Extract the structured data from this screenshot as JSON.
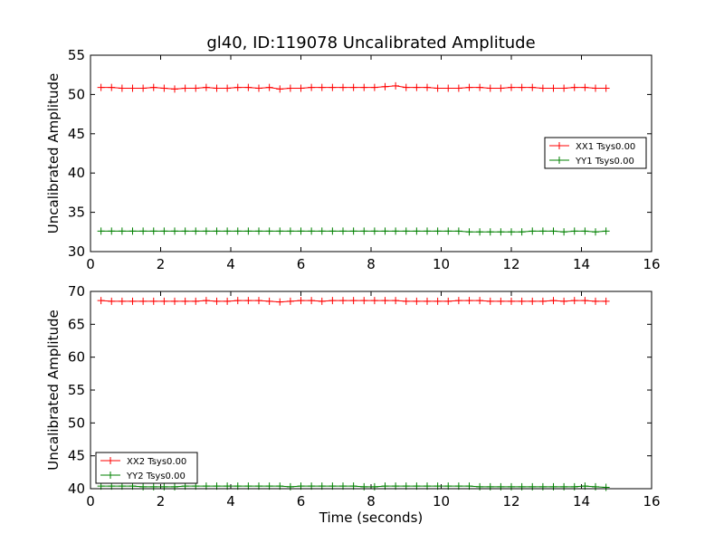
{
  "chart_data": [
    {
      "type": "line",
      "title": "gl40, ID:119078 Uncalibrated Amplitude",
      "xlabel": "",
      "ylabel": "Uncalibrated Amplitude",
      "xlim": [
        0,
        16
      ],
      "ylim": [
        30,
        55
      ],
      "xticks": [
        "0",
        "2",
        "4",
        "6",
        "8",
        "10",
        "12",
        "14",
        "16"
      ],
      "yticks": [
        "30",
        "35",
        "40",
        "45",
        "50",
        "55"
      ],
      "legend_position": "center-right",
      "x": [
        0.3,
        0.6,
        0.9,
        1.2,
        1.5,
        1.8,
        2.1,
        2.4,
        2.7,
        3.0,
        3.3,
        3.6,
        3.9,
        4.2,
        4.5,
        4.8,
        5.1,
        5.4,
        5.7,
        6.0,
        6.3,
        6.6,
        6.9,
        7.2,
        7.5,
        7.8,
        8.1,
        8.4,
        8.7,
        9.0,
        9.3,
        9.6,
        9.9,
        10.2,
        10.5,
        10.8,
        11.1,
        11.4,
        11.7,
        12.0,
        12.3,
        12.6,
        12.9,
        13.2,
        13.5,
        13.8,
        14.1,
        14.4,
        14.7
      ],
      "series": [
        {
          "name": "XX1 Tsys0.00",
          "color": "#ff0000",
          "values": [
            50.9,
            50.9,
            50.8,
            50.8,
            50.8,
            50.9,
            50.8,
            50.7,
            50.8,
            50.8,
            50.9,
            50.8,
            50.8,
            50.9,
            50.9,
            50.8,
            50.9,
            50.7,
            50.8,
            50.8,
            50.9,
            50.9,
            50.9,
            50.9,
            50.9,
            50.9,
            50.9,
            51.0,
            51.1,
            50.9,
            50.9,
            50.9,
            50.8,
            50.8,
            50.8,
            50.9,
            50.9,
            50.8,
            50.8,
            50.9,
            50.9,
            50.9,
            50.8,
            50.8,
            50.8,
            50.9,
            50.9,
            50.8,
            50.8
          ]
        },
        {
          "name": "YY1 Tsys0.00",
          "color": "#008000",
          "values": [
            32.6,
            32.6,
            32.6,
            32.6,
            32.6,
            32.6,
            32.6,
            32.6,
            32.6,
            32.6,
            32.6,
            32.6,
            32.6,
            32.6,
            32.6,
            32.6,
            32.6,
            32.6,
            32.6,
            32.6,
            32.6,
            32.6,
            32.6,
            32.6,
            32.6,
            32.6,
            32.6,
            32.6,
            32.6,
            32.6,
            32.6,
            32.6,
            32.6,
            32.6,
            32.6,
            32.5,
            32.5,
            32.5,
            32.5,
            32.5,
            32.5,
            32.6,
            32.6,
            32.6,
            32.5,
            32.6,
            32.6,
            32.5,
            32.6
          ]
        }
      ]
    },
    {
      "type": "line",
      "title": "",
      "xlabel": "Time (seconds)",
      "ylabel": "Uncalibrated Amplitude",
      "xlim": [
        0,
        16
      ],
      "ylim": [
        40,
        70
      ],
      "xticks": [
        "0",
        "2",
        "4",
        "6",
        "8",
        "10",
        "12",
        "14",
        "16"
      ],
      "yticks": [
        "40",
        "45",
        "50",
        "55",
        "60",
        "65",
        "70"
      ],
      "legend_position": "lower-left",
      "x": [
        0.3,
        0.6,
        0.9,
        1.2,
        1.5,
        1.8,
        2.1,
        2.4,
        2.7,
        3.0,
        3.3,
        3.6,
        3.9,
        4.2,
        4.5,
        4.8,
        5.1,
        5.4,
        5.7,
        6.0,
        6.3,
        6.6,
        6.9,
        7.2,
        7.5,
        7.8,
        8.1,
        8.4,
        8.7,
        9.0,
        9.3,
        9.6,
        9.9,
        10.2,
        10.5,
        10.8,
        11.1,
        11.4,
        11.7,
        12.0,
        12.3,
        12.6,
        12.9,
        13.2,
        13.5,
        13.8,
        14.1,
        14.4,
        14.7
      ],
      "series": [
        {
          "name": "XX2 Tsys0.00",
          "color": "#ff0000",
          "values": [
            68.6,
            68.5,
            68.5,
            68.5,
            68.5,
            68.5,
            68.5,
            68.5,
            68.5,
            68.5,
            68.6,
            68.5,
            68.5,
            68.6,
            68.6,
            68.6,
            68.5,
            68.4,
            68.5,
            68.6,
            68.6,
            68.5,
            68.6,
            68.6,
            68.6,
            68.6,
            68.6,
            68.6,
            68.6,
            68.5,
            68.5,
            68.5,
            68.5,
            68.5,
            68.6,
            68.6,
            68.6,
            68.5,
            68.5,
            68.5,
            68.5,
            68.5,
            68.5,
            68.6,
            68.5,
            68.6,
            68.6,
            68.5,
            68.5
          ]
        },
        {
          "name": "YY2 Tsys0.00",
          "color": "#008000",
          "values": [
            40.4,
            40.4,
            40.4,
            40.4,
            40.3,
            40.3,
            40.3,
            40.3,
            40.4,
            40.4,
            40.4,
            40.4,
            40.4,
            40.4,
            40.4,
            40.4,
            40.4,
            40.4,
            40.3,
            40.4,
            40.4,
            40.4,
            40.4,
            40.4,
            40.4,
            40.3,
            40.3,
            40.4,
            40.4,
            40.4,
            40.4,
            40.4,
            40.4,
            40.4,
            40.4,
            40.4,
            40.3,
            40.3,
            40.3,
            40.3,
            40.3,
            40.3,
            40.3,
            40.3,
            40.3,
            40.3,
            40.4,
            40.3,
            40.2
          ]
        }
      ]
    }
  ]
}
